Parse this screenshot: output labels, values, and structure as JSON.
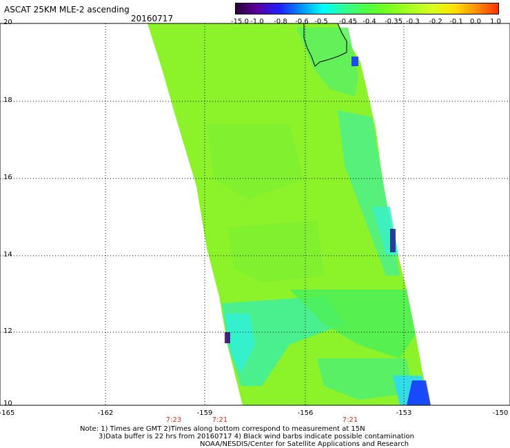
{
  "header": {
    "title": "ASCAT 25KM MLE-2 ascending",
    "date": "20160717"
  },
  "colorbar": {
    "labels": [
      "-15.0",
      "-1.0",
      "-0.8",
      "-0.6",
      "-0.5",
      "-0.45",
      "-0.4",
      "-0.35",
      "-0.3",
      "-0.2",
      "-0.1",
      "0.0",
      "1.0"
    ],
    "colors": [
      "#2a0038",
      "#5a00a0",
      "#2020ff",
      "#0090ff",
      "#00ffff",
      "#30ff90",
      "#50ff40",
      "#7aff20",
      "#a8ff20",
      "#d8ff20",
      "#ffe000",
      "#ff9000",
      "#ff3000"
    ]
  },
  "axes": {
    "y_labels": [
      "20",
      "18",
      "16",
      "14",
      "12",
      "10"
    ],
    "x_labels": [
      "-165",
      "-162",
      "-159",
      "-156",
      "-153",
      "-150"
    ],
    "lat_range": [
      10,
      20
    ],
    "lon_range": [
      -165,
      -150
    ]
  },
  "time_labels": [
    "7:23",
    "7:21",
    "7:21"
  ],
  "notes": [
    "Note: 1) Times are GMT 2)Times along bottom correspond to measurement at 15N",
    "3)Data buffer is 22 hrs from 20160717 4) Black wind barbs indicate possible contamination",
    "NOAA/NESDIS/Center for Satellite Applications and Research"
  ],
  "map": {
    "background_color": "#ffffff",
    "swath_base_color": "#8cf22a",
    "coast_color": "#000000"
  }
}
